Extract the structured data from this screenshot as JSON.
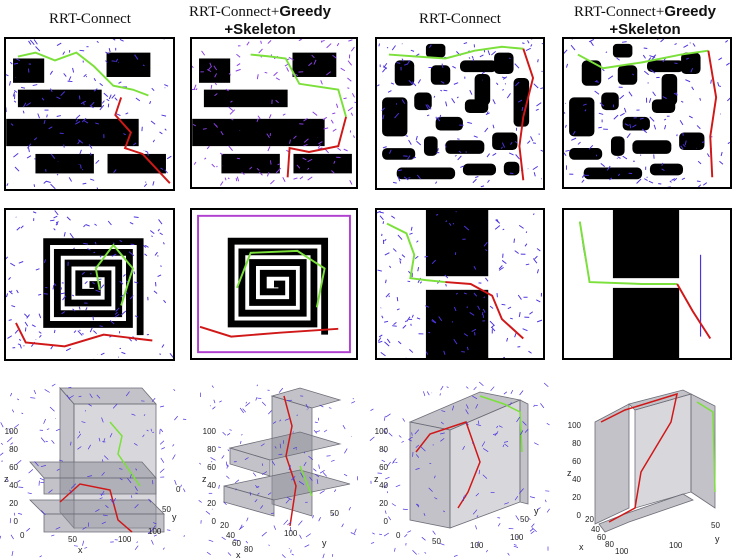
{
  "headers": {
    "col1": "RRT-Connect",
    "col2_line1": "RRT-Connect+",
    "col2_bold": "Greedy",
    "col2_line2": "+Skeleton",
    "col3": "RRT-Connect",
    "col4_line1": "RRT-Connect+",
    "col4_bold": "Greedy",
    "col4_line2": "+Skeleton"
  },
  "axes3d": {
    "z_label": "z",
    "x_label": "x",
    "y_label": "y",
    "z_ticks": [
      "0",
      "20",
      "40",
      "60",
      "80",
      "100"
    ],
    "x_ticks_a": [
      "0",
      "50",
      "100"
    ],
    "y_ticks_a": [
      "0",
      "50",
      "100"
    ],
    "x_ticks_b": [
      "20",
      "40",
      "60",
      "80",
      "100"
    ],
    "y_ticks_b": [
      "0",
      "50",
      "100"
    ]
  },
  "colors": {
    "obstacle": "#000000",
    "tree": "#4b34e0",
    "tree_alt": "#8a3fe6",
    "greedy_path": "#7be03a",
    "final_path": "#d01818",
    "box3d": "#8f8f9a"
  }
}
